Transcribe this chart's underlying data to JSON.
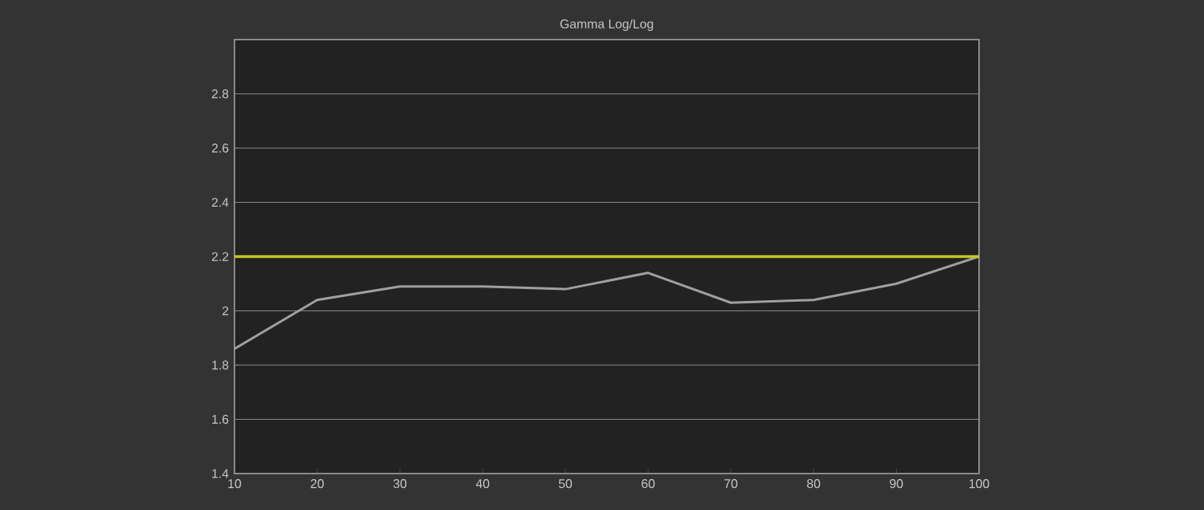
{
  "chart_data": {
    "type": "line",
    "title": "Gamma Log/Log",
    "x": [
      10,
      20,
      30,
      40,
      50,
      60,
      70,
      80,
      90,
      100
    ],
    "series": [
      {
        "color": "#a0a0a0",
        "values": [
          1.86,
          2.04,
          2.09,
          2.09,
          2.08,
          2.14,
          2.03,
          2.04,
          2.1,
          2.2
        ]
      }
    ],
    "xlim": [
      10,
      100
    ],
    "xticks": [
      10,
      20,
      30,
      40,
      50,
      60,
      70,
      80,
      90,
      100
    ],
    "ylim": [
      1.4,
      3.0
    ],
    "yticks": [
      1.4,
      1.6,
      1.8,
      2,
      2.2,
      2.4,
      2.6,
      2.8
    ],
    "grid": "y",
    "marker": "none",
    "line_style": "solid",
    "ref_lines": [
      {
        "axis": "y",
        "value": 2.2,
        "color": "#c8c81e"
      }
    ]
  }
}
